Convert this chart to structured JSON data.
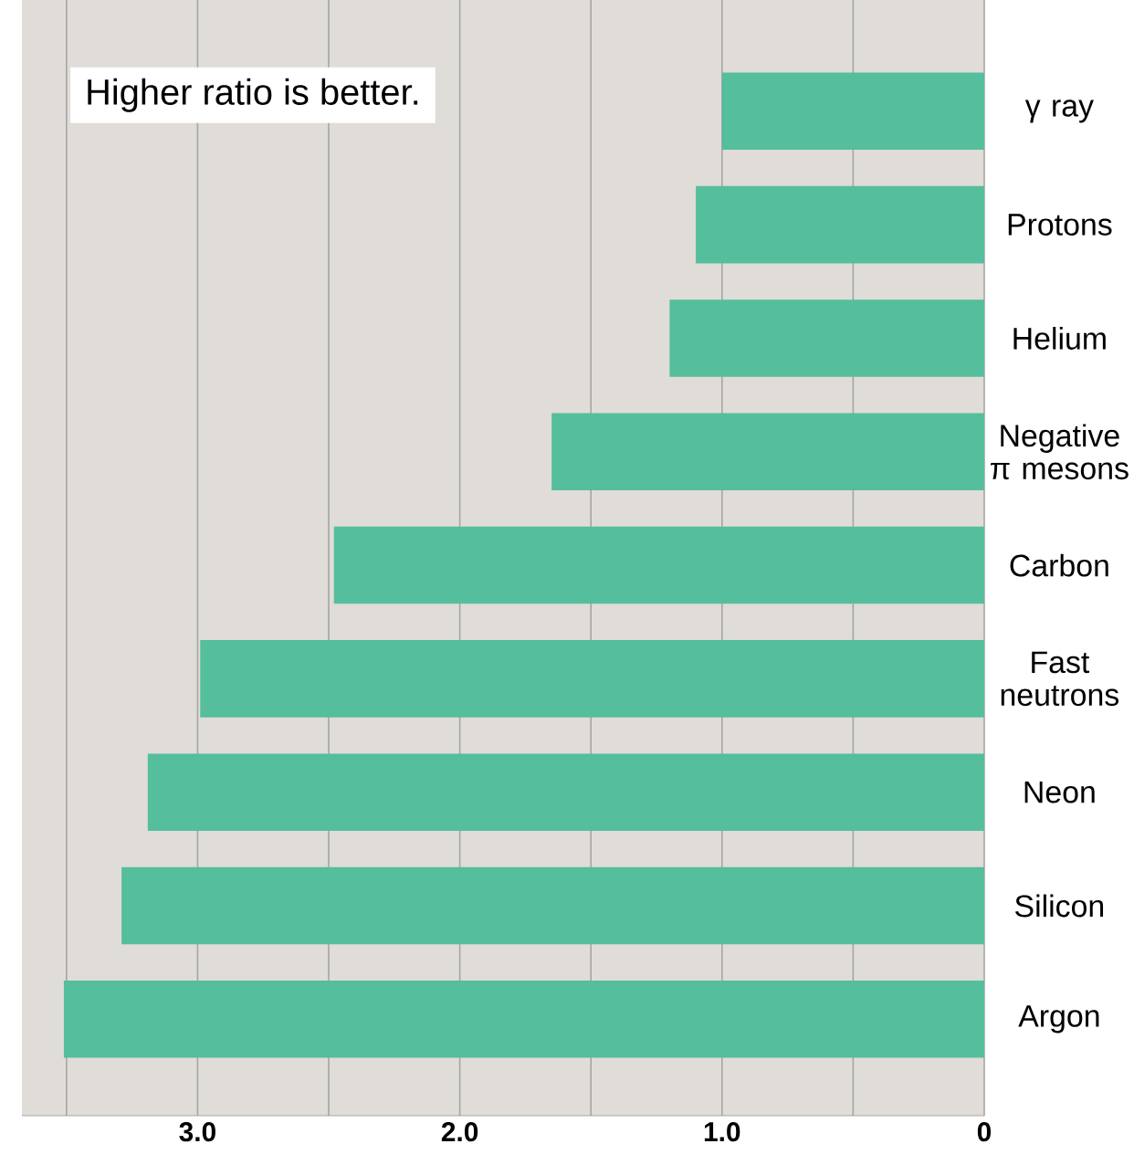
{
  "chart_data": {
    "type": "bar",
    "orientation": "horizontal",
    "categories": [
      "γ ray",
      "Protons",
      "Helium",
      "Negative π mesons",
      "Carbon",
      "Fast neutrons",
      "Neon",
      "Silicon",
      "Argon"
    ],
    "values": [
      1.0,
      1.1,
      1.2,
      1.65,
      2.48,
      2.99,
      3.19,
      3.29,
      3.51
    ],
    "color": "#55be9c",
    "xlim": [
      3.67,
      0
    ],
    "xticks": [
      {
        "value": 3.5,
        "label": null
      },
      {
        "value": 3,
        "label": "3.0"
      },
      {
        "value": 2.5,
        "label": null
      },
      {
        "value": 2,
        "label": "2.0"
      },
      {
        "value": 1.5,
        "label": null
      },
      {
        "value": 1,
        "label": "1.0"
      },
      {
        "value": 0.5,
        "label": null
      },
      0
    ],
    "grid": "x",
    "annotations": [
      "Higher ratio is better."
    ]
  }
}
